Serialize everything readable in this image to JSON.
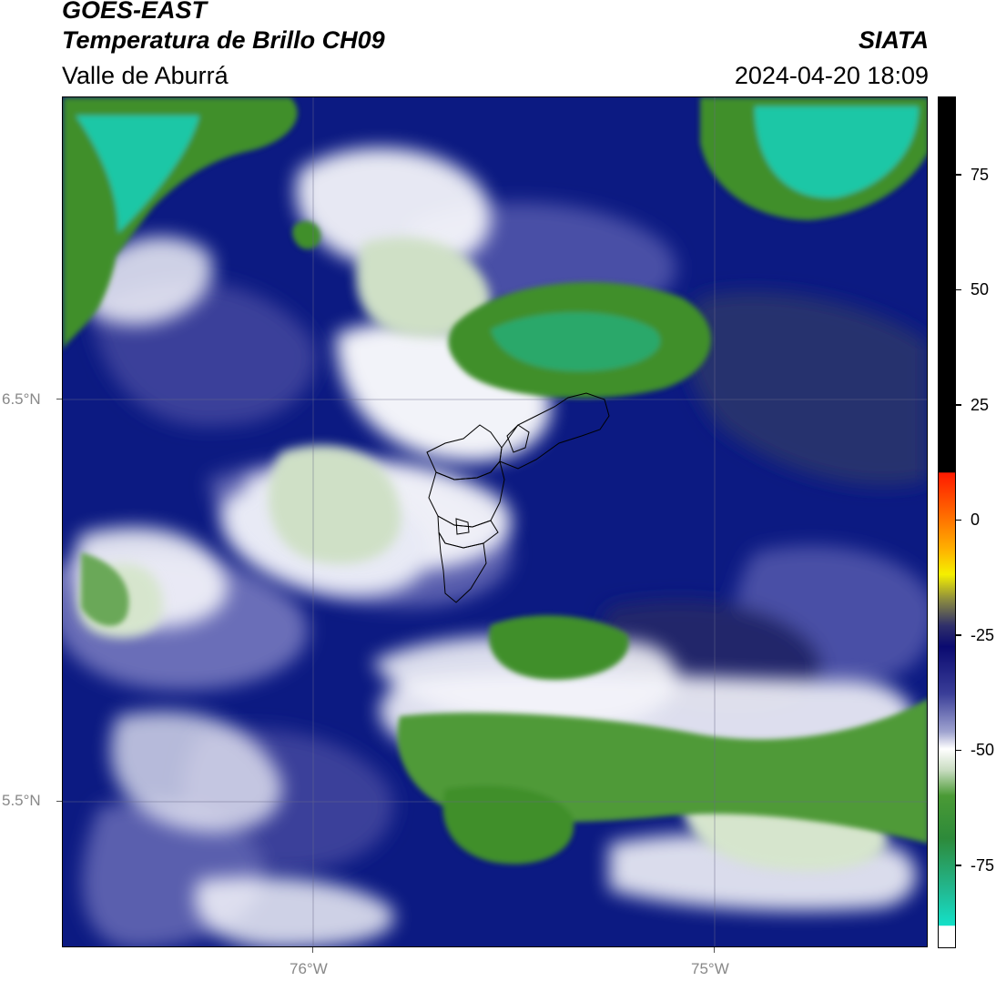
{
  "header": {
    "title_line1": "GOES-EAST",
    "title_line2": "Temperatura de Brillo CH09",
    "subtitle_left": "Valle de Aburrá",
    "title_right": "SIATA",
    "subtitle_right": "2024-04-20 18:09"
  },
  "map": {
    "lat_labels": [
      "6.5°N",
      "5.5°N"
    ],
    "lon_labels": [
      "76°W",
      "75°W"
    ],
    "extent": {
      "lon_min": -76.62,
      "lon_max": -74.53,
      "lat_min": 5.13,
      "lat_max": 7.25
    },
    "gridlines": true,
    "variable": "brightness temperature",
    "colors": {
      "warm_green": "#3d8c2a",
      "teal": "#1ec8a8",
      "navy": "#0a1a80",
      "white": "#ffffff",
      "pale_green": "#c8dcc0"
    }
  },
  "colorbar": {
    "tick_labels": [
      "75",
      "50",
      "25",
      "0",
      "-25",
      "-50",
      "-75"
    ],
    "tick_values": [
      75,
      50,
      25,
      0,
      -25,
      -50,
      -75
    ],
    "vmin": -93,
    "vmax": 92,
    "colors": {
      "above_25": "#000000",
      "red": "#ff1a00",
      "orange": "#ff8c00",
      "yellow": "#f5f000",
      "olive": "#7a7a3a",
      "navy": "#0a0a70",
      "blue_gray": "#5a5ea8",
      "white": "#ffffff",
      "green": "#3d8c2a",
      "teal": "#14e0c8",
      "min_white": "#ffffff"
    }
  }
}
